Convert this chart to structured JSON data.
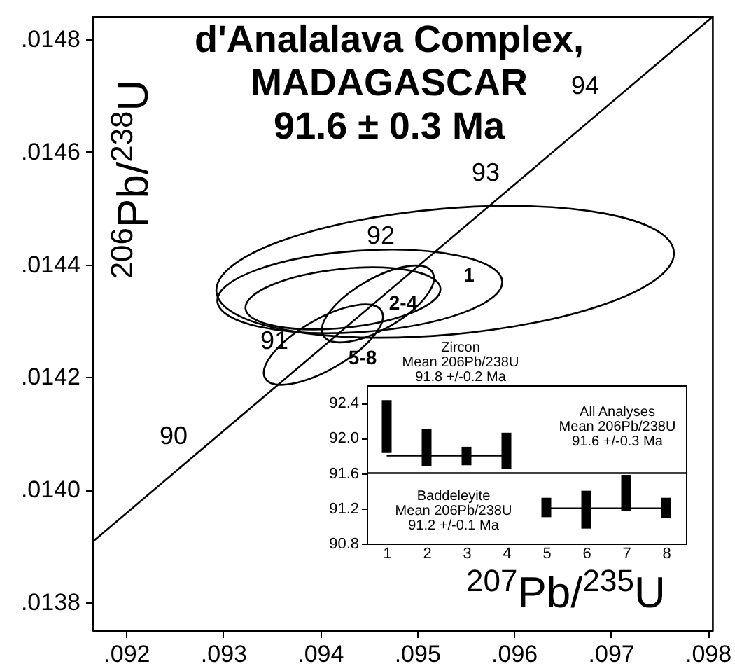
{
  "chart_data": [
    {
      "type": "line",
      "title": "d'Analalava Complex,\nMADAGASCAR\n91.6 ± 0.3 Ma",
      "xlabel": "$^{207}$Pb/$^{235}$U",
      "ylabel": "$^{206}$Pb/$^{238}$U",
      "xlim": [
        0.09165,
        0.09805
      ],
      "ylim": [
        0.01375,
        0.01484
      ],
      "xticks": [
        {
          "value": 0.092,
          "label": ".092"
        },
        {
          "value": 0.093,
          "label": ".093"
        },
        {
          "value": 0.094,
          "label": ".094"
        },
        {
          "value": 0.095,
          "label": ".095"
        },
        {
          "value": 0.096,
          "label": ".096"
        },
        {
          "value": 0.097,
          "label": ".097"
        },
        {
          "value": 0.098,
          "label": ".098"
        }
      ],
      "yticks": [
        {
          "value": 0.0138,
          "label": ".0138"
        },
        {
          "value": 0.014,
          "label": ".0140"
        },
        {
          "value": 0.0142,
          "label": ".0142"
        },
        {
          "value": 0.0144,
          "label": ".0144"
        },
        {
          "value": 0.0146,
          "label": ".0146"
        },
        {
          "value": 0.0148,
          "label": ".0148"
        }
      ],
      "grid": false,
      "series": [
        {
          "color": "#000000",
          "x": [
            0.09165,
            0.09805
          ],
          "values": [
            0.013907,
            0.01484
          ]
        }
      ],
      "annotations": [
        "90",
        "91",
        "92",
        "93",
        "94",
        "1",
        "2-4",
        "5-8"
      ]
    },
    {
      "type": "bar",
      "categories": [
        "1",
        "2",
        "3",
        "4",
        "5",
        "6",
        "7",
        "8"
      ],
      "ylim": [
        90.8,
        92.6
      ],
      "yticks": [
        90.8,
        91.2,
        91.6,
        {
          "value": 92,
          "label": "92.0"
        },
        92.4
      ],
      "series": [
        {
          "type": "bar",
          "color": "#000000",
          "values": [
            0.6,
            0.42,
            0.21,
            0.41,
            0.22,
            0.43,
            0.41,
            0.23
          ],
          "base": [
            91.83,
            91.68,
            91.69,
            91.65,
            91.1,
            90.97,
            91.17,
            91.09
          ]
        },
        {
          "type": "line",
          "color": "#000000",
          "x": [
            "1",
            "2",
            "3",
            "4"
          ],
          "values": [
            91.8,
            91.8,
            91.8,
            91.8
          ]
        },
        {
          "type": "line",
          "color": "#000000",
          "x": [
            "5",
            "6",
            "7",
            "8"
          ],
          "values": [
            91.2,
            91.2,
            91.2,
            91.2
          ]
        }
      ],
      "ref_lines": [
        {
          "axis": "y",
          "value": 91.6,
          "color": "#000000"
        }
      ],
      "annotations": [
        "Zircon\nMean 206Pb/238U\n91.8 +/-0.2 Ma",
        "All Analyses\nMean 206Pb/238U\n91.6 +/-0.3 Ma",
        "Baddeleyite\nMean 206Pb/238U\n91.2 +/-0.1 Ma"
      ]
    }
  ]
}
